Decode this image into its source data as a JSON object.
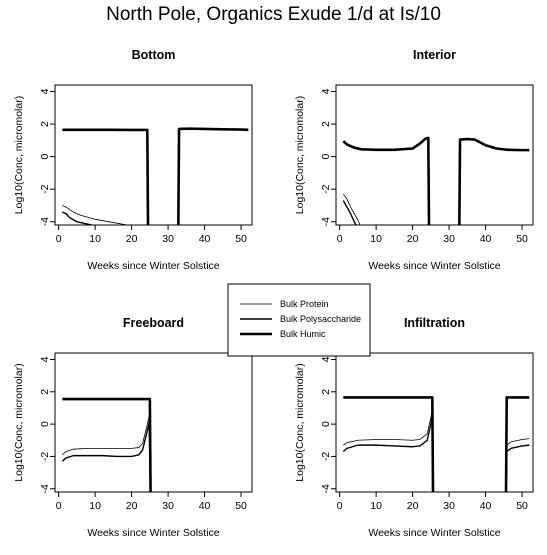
{
  "chart_data": {
    "title": "North Pole, Organics Exude 1/d at Is/10",
    "type": "line",
    "xlabel": "Weeks since Winter Solstice",
    "ylabel": "Log10(Conc, micromolar)",
    "xlim": [
      -1,
      53
    ],
    "ylim": [
      -4.2,
      4.4
    ],
    "xticks": [
      0,
      10,
      20,
      30,
      40,
      50
    ],
    "yticks": [
      -4,
      -2,
      0,
      2,
      4
    ],
    "grid": false,
    "legend": {
      "placement": "center",
      "entries": [
        {
          "name": "Bulk Protein",
          "line_width": 0.8
        },
        {
          "name": "Bulk Polysaccharide",
          "line_width": 1.4
        },
        {
          "name": "Bulk Humic",
          "line_width": 2.6
        }
      ]
    },
    "panels": [
      {
        "title": "Bottom",
        "series": [
          {
            "name": "Bulk Protein",
            "points": [
              [
                1,
                -3.0
              ],
              [
                2,
                -3.1
              ],
              [
                4,
                -3.4
              ],
              [
                6,
                -3.6
              ],
              [
                10,
                -3.85
              ],
              [
                15,
                -4.05
              ],
              [
                20,
                -4.25
              ],
              [
                23,
                -4.35
              ]
            ]
          },
          {
            "name": "Bulk Polysaccharide",
            "points": [
              [
                1,
                -3.4
              ],
              [
                2,
                -3.5
              ],
              [
                3,
                -3.75
              ],
              [
                5,
                -4.0
              ],
              [
                8,
                -4.15
              ],
              [
                10,
                -4.25
              ]
            ]
          },
          {
            "name": "Bulk Humic",
            "points": [
              [
                1,
                1.65
              ],
              [
                5,
                1.65
              ],
              [
                10,
                1.65
              ],
              [
                15,
                1.65
              ],
              [
                20,
                1.64
              ],
              [
                24.3,
                1.64
              ],
              [
                24.5,
                -4.4
              ],
              [
                null,
                null
              ],
              [
                32.8,
                -4.4
              ],
              [
                33,
                1.7
              ],
              [
                36,
                1.72
              ],
              [
                40,
                1.7
              ],
              [
                45,
                1.68
              ],
              [
                50,
                1.66
              ],
              [
                52,
                1.65
              ]
            ]
          }
        ]
      },
      {
        "title": "Interior",
        "series": [
          {
            "name": "Bulk Protein",
            "points": [
              [
                1,
                -2.3
              ],
              [
                2,
                -2.6
              ],
              [
                3,
                -3.1
              ],
              [
                5,
                -3.9
              ],
              [
                6,
                -4.4
              ]
            ]
          },
          {
            "name": "Bulk Polysaccharide",
            "points": [
              [
                1,
                -2.7
              ],
              [
                2,
                -3.1
              ],
              [
                3,
                -3.5
              ],
              [
                4,
                -4.0
              ],
              [
                5,
                -4.4
              ]
            ]
          },
          {
            "name": "Bulk Humic",
            "points": [
              [
                1,
                0.95
              ],
              [
                2,
                0.75
              ],
              [
                4,
                0.55
              ],
              [
                6,
                0.45
              ],
              [
                10,
                0.42
              ],
              [
                15,
                0.42
              ],
              [
                20,
                0.5
              ],
              [
                22,
                0.8
              ],
              [
                23.5,
                1.1
              ],
              [
                24.3,
                1.15
              ],
              [
                24.5,
                -4.4
              ],
              [
                null,
                null
              ],
              [
                32.8,
                -4.4
              ],
              [
                33,
                1.05
              ],
              [
                35,
                1.08
              ],
              [
                37,
                1.05
              ],
              [
                40,
                0.7
              ],
              [
                43,
                0.5
              ],
              [
                46,
                0.42
              ],
              [
                50,
                0.4
              ],
              [
                52,
                0.4
              ]
            ]
          }
        ]
      },
      {
        "title": "Freeboard",
        "series": [
          {
            "name": "Bulk Protein",
            "points": [
              [
                1,
                -1.9
              ],
              [
                2,
                -1.7
              ],
              [
                4,
                -1.55
              ],
              [
                8,
                -1.5
              ],
              [
                12,
                -1.5
              ],
              [
                16,
                -1.5
              ],
              [
                20,
                -1.5
              ],
              [
                22,
                -1.45
              ],
              [
                23,
                -1.2
              ],
              [
                24,
                -0.3
              ],
              [
                24.8,
                0.5
              ],
              [
                25.2,
                -4.4
              ]
            ]
          },
          {
            "name": "Bulk Polysaccharide",
            "points": [
              [
                1,
                -2.3
              ],
              [
                2,
                -2.1
              ],
              [
                4,
                -1.95
              ],
              [
                8,
                -1.95
              ],
              [
                12,
                -1.95
              ],
              [
                16,
                -2.0
              ],
              [
                20,
                -2.0
              ],
              [
                22,
                -1.9
              ],
              [
                23,
                -1.6
              ],
              [
                24,
                -0.7
              ],
              [
                24.8,
                0.1
              ],
              [
                25.2,
                -4.4
              ]
            ]
          },
          {
            "name": "Bulk Humic",
            "points": [
              [
                1,
                1.55
              ],
              [
                10,
                1.55
              ],
              [
                20,
                1.55
              ],
              [
                25,
                1.55
              ],
              [
                25.2,
                -4.4
              ]
            ]
          }
        ]
      },
      {
        "title": "Infiltration",
        "series": [
          {
            "name": "Bulk Protein",
            "points": [
              [
                1,
                -1.3
              ],
              [
                2,
                -1.15
              ],
              [
                5,
                -1.0
              ],
              [
                10,
                -0.95
              ],
              [
                15,
                -0.95
              ],
              [
                20,
                -1.0
              ],
              [
                22,
                -0.95
              ],
              [
                24,
                -0.6
              ],
              [
                25,
                0.4
              ],
              [
                25.4,
                0.9
              ],
              [
                25.6,
                -4.4
              ],
              [
                null,
                null
              ],
              [
                45.6,
                -4.4
              ],
              [
                45.8,
                -1.3
              ],
              [
                47,
                -1.1
              ],
              [
                50,
                -0.95
              ],
              [
                52,
                -0.9
              ]
            ]
          },
          {
            "name": "Bulk Polysaccharide",
            "points": [
              [
                1,
                -1.7
              ],
              [
                2,
                -1.5
              ],
              [
                5,
                -1.3
              ],
              [
                10,
                -1.3
              ],
              [
                15,
                -1.35
              ],
              [
                20,
                -1.4
              ],
              [
                22,
                -1.35
              ],
              [
                24,
                -1.0
              ],
              [
                25,
                0.0
              ],
              [
                25.4,
                0.6
              ],
              [
                25.6,
                -4.4
              ],
              [
                null,
                null
              ],
              [
                45.6,
                -4.4
              ],
              [
                45.8,
                -1.7
              ],
              [
                47,
                -1.5
              ],
              [
                50,
                -1.35
              ],
              [
                52,
                -1.3
              ]
            ]
          },
          {
            "name": "Bulk Humic",
            "points": [
              [
                1,
                1.65
              ],
              [
                10,
                1.65
              ],
              [
                20,
                1.65
              ],
              [
                25.4,
                1.65
              ],
              [
                25.6,
                -4.4
              ],
              [
                null,
                null
              ],
              [
                45.6,
                -4.4
              ],
              [
                45.8,
                1.65
              ],
              [
                52,
                1.65
              ]
            ]
          }
        ]
      }
    ]
  }
}
